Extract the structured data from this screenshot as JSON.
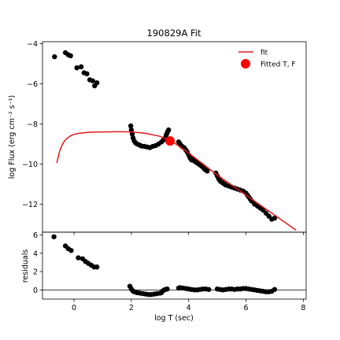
{
  "chart_data": [
    {
      "type": "scatter",
      "title": "190829A Fit",
      "xlabel": "",
      "ylabel": "log Flux (erg cm⁻² s⁻¹)",
      "xlim": [
        -1.1,
        8.1
      ],
      "ylim": [
        -13.4,
        -3.9
      ],
      "x_ticks": [
        0,
        2,
        4,
        6,
        8
      ],
      "y_ticks": [
        -4,
        -6,
        -8,
        -10,
        -12
      ],
      "y_tick_labels": [
        "−4",
        "−6",
        "−8",
        "−10",
        "−12"
      ],
      "grid": false,
      "legend_position": "top-right",
      "legend": [
        {
          "label": "fit",
          "type": "line",
          "color": "#e31a1c"
        },
        {
          "label": "Fitted T, F",
          "type": "marker",
          "color": "#ff0000"
        }
      ],
      "series": [
        {
          "type": "scatter",
          "color": "#000000",
          "points": [
            [
              -0.68,
              -4.65
            ],
            [
              -0.3,
              -4.45
            ],
            [
              -0.2,
              -4.55
            ],
            [
              -0.12,
              -4.6
            ],
            [
              0.1,
              -5.2
            ],
            [
              0.25,
              -5.15
            ],
            [
              0.35,
              -5.45
            ],
            [
              0.45,
              -5.5
            ],
            [
              0.55,
              -5.8
            ],
            [
              0.65,
              -5.85
            ],
            [
              0.72,
              -6.1
            ],
            [
              0.8,
              -5.95
            ],
            [
              1.98,
              -8.1
            ],
            [
              2.0,
              -8.3
            ],
            [
              2.03,
              -8.5
            ],
            [
              2.06,
              -8.7
            ],
            [
              2.1,
              -8.85
            ],
            [
              2.15,
              -8.95
            ],
            [
              2.2,
              -9.0
            ],
            [
              2.28,
              -9.05
            ],
            [
              2.35,
              -9.1
            ],
            [
              2.45,
              -9.12
            ],
            [
              2.55,
              -9.15
            ],
            [
              2.65,
              -9.18
            ],
            [
              2.75,
              -9.12
            ],
            [
              2.85,
              -9.08
            ],
            [
              2.95,
              -9.0
            ],
            [
              3.05,
              -8.9
            ],
            [
              3.12,
              -8.8
            ],
            [
              3.18,
              -8.7
            ],
            [
              3.22,
              -8.55
            ],
            [
              3.25,
              -8.45
            ],
            [
              3.28,
              -8.35
            ],
            [
              3.3,
              -8.3
            ],
            [
              3.65,
              -8.9
            ],
            [
              3.7,
              -9.0
            ],
            [
              3.75,
              -9.1
            ],
            [
              3.8,
              -9.15
            ],
            [
              3.85,
              -9.2
            ],
            [
              3.9,
              -9.3
            ],
            [
              3.95,
              -9.4
            ],
            [
              4.0,
              -9.55
            ],
            [
              4.05,
              -9.7
            ],
            [
              4.1,
              -9.8
            ],
            [
              4.15,
              -9.75
            ],
            [
              4.2,
              -9.85
            ],
            [
              4.25,
              -9.9
            ],
            [
              4.3,
              -9.95
            ],
            [
              4.35,
              -10.0
            ],
            [
              4.4,
              -10.05
            ],
            [
              4.45,
              -10.1
            ],
            [
              4.5,
              -10.15
            ],
            [
              4.55,
              -10.25
            ],
            [
              4.6,
              -10.3
            ],
            [
              4.65,
              -10.35
            ],
            [
              4.95,
              -10.45
            ],
            [
              5.0,
              -10.6
            ],
            [
              5.05,
              -10.75
            ],
            [
              5.1,
              -10.85
            ],
            [
              5.15,
              -10.9
            ],
            [
              5.2,
              -10.95
            ],
            [
              5.25,
              -11.0
            ],
            [
              5.3,
              -11.05
            ],
            [
              5.4,
              -11.1
            ],
            [
              5.5,
              -11.15
            ],
            [
              5.6,
              -11.2
            ],
            [
              5.7,
              -11.25
            ],
            [
              5.8,
              -11.3
            ],
            [
              5.9,
              -11.35
            ],
            [
              6.0,
              -11.45
            ],
            [
              6.05,
              -11.55
            ],
            [
              6.1,
              -11.65
            ],
            [
              6.15,
              -11.75
            ],
            [
              6.2,
              -11.85
            ],
            [
              6.3,
              -12.0
            ],
            [
              6.4,
              -12.1
            ],
            [
              6.5,
              -12.2
            ],
            [
              6.6,
              -12.3
            ],
            [
              6.7,
              -12.45
            ],
            [
              6.8,
              -12.6
            ],
            [
              6.9,
              -12.75
            ],
            [
              7.0,
              -12.7
            ]
          ]
        },
        {
          "type": "line",
          "color": "#e31a1c",
          "points": [
            [
              -0.6,
              -9.95
            ],
            [
              -0.5,
              -9.35
            ],
            [
              -0.4,
              -9.0
            ],
            [
              -0.3,
              -8.8
            ],
            [
              -0.2,
              -8.67
            ],
            [
              -0.1,
              -8.58
            ],
            [
              0.0,
              -8.52
            ],
            [
              0.2,
              -8.46
            ],
            [
              0.5,
              -8.42
            ],
            [
              1.0,
              -8.4
            ],
            [
              1.5,
              -8.39
            ],
            [
              2.0,
              -8.4
            ],
            [
              2.5,
              -8.47
            ],
            [
              3.0,
              -8.62
            ],
            [
              3.5,
              -8.95
            ],
            [
              4.0,
              -9.45
            ],
            [
              4.5,
              -10.0
            ],
            [
              5.0,
              -10.55
            ],
            [
              5.5,
              -11.05
            ],
            [
              6.0,
              -11.55
            ],
            [
              6.5,
              -12.05
            ],
            [
              7.0,
              -12.55
            ],
            [
              7.5,
              -13.05
            ],
            [
              7.75,
              -13.3
            ]
          ]
        },
        {
          "type": "marker",
          "color": "#ff0000",
          "points": [
            [
              3.35,
              -8.85
            ]
          ]
        }
      ]
    },
    {
      "type": "scatter",
      "title": "",
      "xlabel": "log T (sec)",
      "ylabel": "residuals",
      "xlim": [
        -1.1,
        8.1
      ],
      "ylim": [
        -1.0,
        6.3
      ],
      "x_ticks": [
        0,
        2,
        4,
        6,
        8
      ],
      "y_ticks": [
        0,
        2,
        4,
        6
      ],
      "grid": false,
      "reference_line": 0,
      "series": [
        {
          "type": "scatter",
          "color": "#000000",
          "points": [
            [
              -0.7,
              5.8
            ],
            [
              -0.3,
              4.8
            ],
            [
              -0.2,
              4.5
            ],
            [
              -0.1,
              4.3
            ],
            [
              0.15,
              3.5
            ],
            [
              0.3,
              3.4
            ],
            [
              0.4,
              3.1
            ],
            [
              0.5,
              2.9
            ],
            [
              0.6,
              2.7
            ],
            [
              0.7,
              2.5
            ],
            [
              0.8,
              2.5
            ],
            [
              1.95,
              0.4
            ],
            [
              2.0,
              0.1
            ],
            [
              2.05,
              -0.1
            ],
            [
              2.1,
              -0.2
            ],
            [
              2.2,
              -0.3
            ],
            [
              2.3,
              -0.35
            ],
            [
              2.4,
              -0.4
            ],
            [
              2.5,
              -0.45
            ],
            [
              2.6,
              -0.5
            ],
            [
              2.7,
              -0.5
            ],
            [
              2.8,
              -0.45
            ],
            [
              2.9,
              -0.4
            ],
            [
              3.0,
              -0.35
            ],
            [
              3.05,
              -0.3
            ],
            [
              3.1,
              -0.1
            ],
            [
              3.15,
              0.0
            ],
            [
              3.2,
              0.05
            ],
            [
              3.25,
              0.1
            ],
            [
              3.65,
              0.2
            ],
            [
              3.7,
              0.25
            ],
            [
              3.8,
              0.2
            ],
            [
              3.9,
              0.15
            ],
            [
              4.0,
              0.1
            ],
            [
              4.1,
              0.05
            ],
            [
              4.2,
              0.0
            ],
            [
              4.3,
              0.0
            ],
            [
              4.4,
              0.05
            ],
            [
              4.5,
              0.1
            ],
            [
              4.6,
              0.1
            ],
            [
              4.7,
              0.05
            ],
            [
              5.0,
              0.1
            ],
            [
              5.1,
              0.05
            ],
            [
              5.2,
              0.0
            ],
            [
              5.3,
              0.05
            ],
            [
              5.4,
              0.1
            ],
            [
              5.5,
              0.1
            ],
            [
              5.6,
              0.05
            ],
            [
              5.7,
              0.1
            ],
            [
              5.8,
              0.1
            ],
            [
              5.9,
              0.15
            ],
            [
              6.0,
              0.15
            ],
            [
              6.1,
              0.1
            ],
            [
              6.2,
              0.05
            ],
            [
              6.3,
              0.0
            ],
            [
              6.4,
              -0.05
            ],
            [
              6.5,
              -0.1
            ],
            [
              6.6,
              -0.15
            ],
            [
              6.7,
              -0.2
            ],
            [
              6.8,
              -0.2
            ],
            [
              6.9,
              -0.15
            ],
            [
              7.0,
              0.05
            ]
          ]
        }
      ]
    }
  ]
}
